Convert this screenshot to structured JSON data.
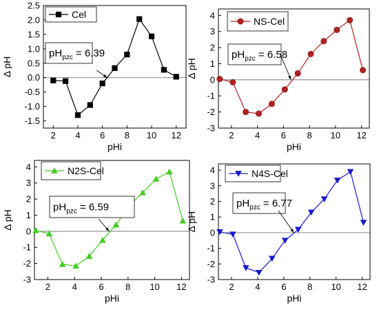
{
  "chart_data": [
    {
      "type": "line",
      "panel": "top-left",
      "legend_label": "Cel",
      "color": "#000000",
      "marker": "square",
      "xlabel": "pHi",
      "ylabel": "Δ pH",
      "xlim": [
        1.2,
        12.8
      ],
      "ylim": [
        -1.75,
        2.5
      ],
      "xticks": [
        2,
        4,
        6,
        8,
        10,
        12
      ],
      "yticks": [
        -1.5,
        -1.0,
        -0.5,
        0.0,
        0.5,
        1.0,
        1.5,
        2.0,
        2.5
      ],
      "ytick_labels": [
        "-1.5",
        "-1.0",
        "-0.5",
        "0.0",
        "0.5",
        "1.0",
        "1.5",
        "2.0",
        "2.5"
      ],
      "x": [
        2,
        3,
        4,
        5,
        6,
        7,
        8,
        9,
        10,
        11,
        12
      ],
      "y": [
        -0.1,
        -0.12,
        -1.3,
        -0.95,
        -0.2,
        0.33,
        0.8,
        2.03,
        1.43,
        0.27,
        0.03
      ],
      "annotation": {
        "prefix": "pH",
        "sub": "pzc",
        "value": "= 6.39",
        "pzc": 6.39
      }
    },
    {
      "type": "line",
      "panel": "top-right",
      "legend_label": "NS-Cel",
      "color": "#b22222",
      "marker": "circle",
      "xlabel": "pHi",
      "ylabel": "Δ pH",
      "xlim": [
        1,
        12.6
      ],
      "ylim": [
        -3,
        4.4
      ],
      "xticks": [
        2,
        4,
        6,
        8,
        10,
        12
      ],
      "yticks": [
        -3,
        -2,
        -1,
        0,
        1,
        2,
        3,
        4
      ],
      "ytick_labels": [
        "-3",
        "-2",
        "-1",
        "0",
        "1",
        "2",
        "3",
        "4"
      ],
      "x": [
        1.1,
        2.1,
        3.1,
        4.1,
        5.1,
        6.1,
        7.1,
        8.1,
        9.1,
        10.1,
        11.1,
        12.1
      ],
      "y": [
        0.05,
        -0.15,
        -2.0,
        -2.1,
        -1.5,
        -0.6,
        0.4,
        1.6,
        2.4,
        3.1,
        3.7,
        0.6
      ],
      "annotation": {
        "prefix": "pH",
        "sub": "pzc",
        "value": "= 6.58",
        "pzc": 6.58
      }
    },
    {
      "type": "line",
      "panel": "bottom-left",
      "legend_label": "N2S-Cel",
      "color": "#44cc22",
      "marker": "triangle-up",
      "xlabel": "pHi",
      "ylabel": "Δ pH",
      "xlim": [
        1,
        12.6
      ],
      "ylim": [
        -3,
        4.4
      ],
      "xticks": [
        2,
        4,
        6,
        8,
        10,
        12
      ],
      "yticks": [
        -3,
        -2,
        -1,
        0,
        1,
        2,
        3,
        4
      ],
      "ytick_labels": [
        "-3",
        "-2",
        "-1",
        "0",
        "1",
        "2",
        "3",
        "4"
      ],
      "x": [
        1.1,
        2.1,
        3.1,
        4.1,
        5.1,
        6.1,
        7.1,
        8.1,
        9.1,
        10.1,
        11.1,
        12.1
      ],
      "y": [
        0.05,
        -0.15,
        -2.05,
        -2.15,
        -1.55,
        -0.55,
        0.4,
        1.6,
        2.4,
        3.25,
        3.7,
        0.65
      ],
      "annotation": {
        "prefix": "pH",
        "sub": "pzc",
        "value": "= 6.59",
        "pzc": 6.59
      }
    },
    {
      "type": "line",
      "panel": "bottom-right",
      "legend_label": "N4S-Cel",
      "color": "#1a1acc",
      "marker": "triangle-down",
      "xlabel": "pHi",
      "ylabel": "Δ pH",
      "xlim": [
        1,
        12.6
      ],
      "ylim": [
        -3,
        4.4
      ],
      "xticks": [
        2,
        4,
        6,
        8,
        10,
        12
      ],
      "yticks": [
        -3,
        -2,
        -1,
        0,
        1,
        2,
        3,
        4
      ],
      "ytick_labels": [
        "-3",
        "-2",
        "-1",
        "0",
        "1",
        "2",
        "3",
        "4"
      ],
      "x": [
        1.1,
        2.1,
        3.1,
        4.1,
        5.1,
        6.1,
        7.1,
        8.1,
        9.1,
        10.1,
        11.1,
        12.1
      ],
      "y": [
        0.05,
        -0.1,
        -2.25,
        -2.55,
        -1.65,
        -0.5,
        0.2,
        1.3,
        2.15,
        3.35,
        3.9,
        0.65
      ],
      "annotation": {
        "prefix": "pH",
        "sub": "pzc",
        "value": "= 6.77",
        "pzc": 6.77
      }
    }
  ]
}
